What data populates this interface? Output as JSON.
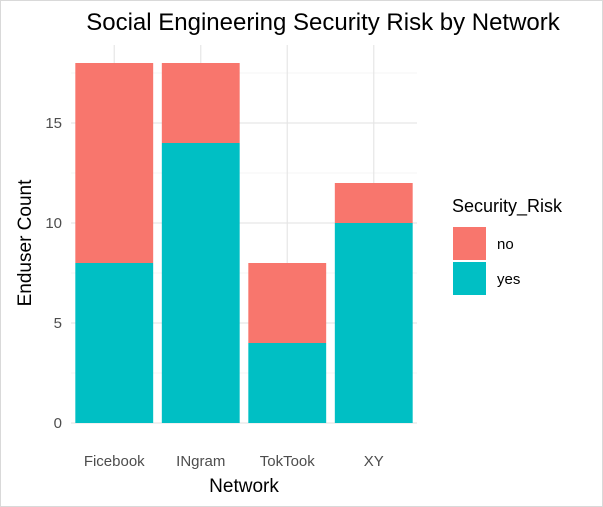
{
  "chart_data": {
    "type": "bar",
    "stacked": true,
    "title": "Social Engineering Security Risk by Network",
    "xlabel": "Network",
    "ylabel": "Enduser Count",
    "categories": [
      "Ficebook",
      "INgram",
      "TokTook",
      "XY"
    ],
    "series": [
      {
        "name": "yes",
        "color": "#00BFC4",
        "values": [
          8,
          14,
          4,
          10
        ]
      },
      {
        "name": "no",
        "color": "#F8766D",
        "values": [
          10,
          4,
          4,
          2
        ]
      }
    ],
    "ylim": [
      0,
      18
    ],
    "yticks": [
      0,
      5,
      10,
      15
    ],
    "yticks_minor": [
      2.5,
      7.5,
      12.5,
      17.5
    ],
    "grid": true,
    "legend": {
      "title": "Security_Risk",
      "placement": "right",
      "entries": [
        {
          "label": "no",
          "color": "#F8766D"
        },
        {
          "label": "yes",
          "color": "#00BFC4"
        }
      ]
    }
  }
}
